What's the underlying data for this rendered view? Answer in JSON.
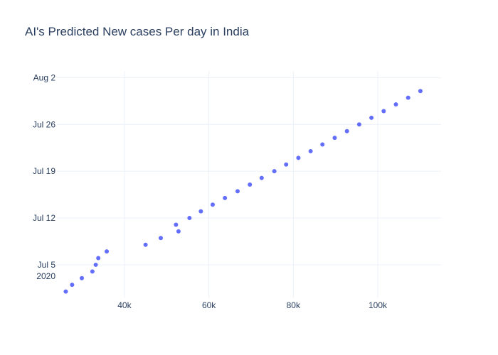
{
  "chart_data": {
    "type": "scatter",
    "title": "AI's Predicted New cases Per day in India",
    "xlabel": "",
    "ylabel": "",
    "xlim": [
      24000,
      115000
    ],
    "ylim": [
      "2020-06-30",
      "2020-08-03"
    ],
    "grid": true,
    "x_ticks": [
      {
        "value": 40000,
        "label": "40k"
      },
      {
        "value": 60000,
        "label": "60k"
      },
      {
        "value": 80000,
        "label": "80k"
      },
      {
        "value": 100000,
        "label": "100k"
      }
    ],
    "y_ticks": [
      {
        "value": "2020-07-05",
        "label": "Jul 5",
        "sublabel": "2020"
      },
      {
        "value": "2020-07-12",
        "label": "Jul 12"
      },
      {
        "value": "2020-07-19",
        "label": "Jul 19"
      },
      {
        "value": "2020-07-26",
        "label": "Jul 26"
      },
      {
        "value": "2020-08-02",
        "label": "Aug 2"
      }
    ],
    "points": [
      {
        "x": 26100,
        "y": "2020-07-01"
      },
      {
        "x": 27600,
        "y": "2020-07-02"
      },
      {
        "x": 29900,
        "y": "2020-07-03"
      },
      {
        "x": 32400,
        "y": "2020-07-04"
      },
      {
        "x": 33200,
        "y": "2020-07-05"
      },
      {
        "x": 33800,
        "y": "2020-07-06"
      },
      {
        "x": 35800,
        "y": "2020-07-07"
      },
      {
        "x": 45000,
        "y": "2020-07-08"
      },
      {
        "x": 48600,
        "y": "2020-07-09"
      },
      {
        "x": 52800,
        "y": "2020-07-10"
      },
      {
        "x": 52200,
        "y": "2020-07-11"
      },
      {
        "x": 55400,
        "y": "2020-07-12"
      },
      {
        "x": 58100,
        "y": "2020-07-13"
      },
      {
        "x": 60900,
        "y": "2020-07-14"
      },
      {
        "x": 63800,
        "y": "2020-07-15"
      },
      {
        "x": 66800,
        "y": "2020-07-16"
      },
      {
        "x": 69700,
        "y": "2020-07-17"
      },
      {
        "x": 72500,
        "y": "2020-07-18"
      },
      {
        "x": 75500,
        "y": "2020-07-19"
      },
      {
        "x": 78300,
        "y": "2020-07-20"
      },
      {
        "x": 81200,
        "y": "2020-07-21"
      },
      {
        "x": 84100,
        "y": "2020-07-22"
      },
      {
        "x": 86900,
        "y": "2020-07-23"
      },
      {
        "x": 89800,
        "y": "2020-07-24"
      },
      {
        "x": 92700,
        "y": "2020-07-25"
      },
      {
        "x": 95600,
        "y": "2020-07-26"
      },
      {
        "x": 98500,
        "y": "2020-07-27"
      },
      {
        "x": 101400,
        "y": "2020-07-28"
      },
      {
        "x": 104300,
        "y": "2020-07-29"
      },
      {
        "x": 107200,
        "y": "2020-07-30"
      },
      {
        "x": 110100,
        "y": "2020-07-31"
      }
    ]
  }
}
